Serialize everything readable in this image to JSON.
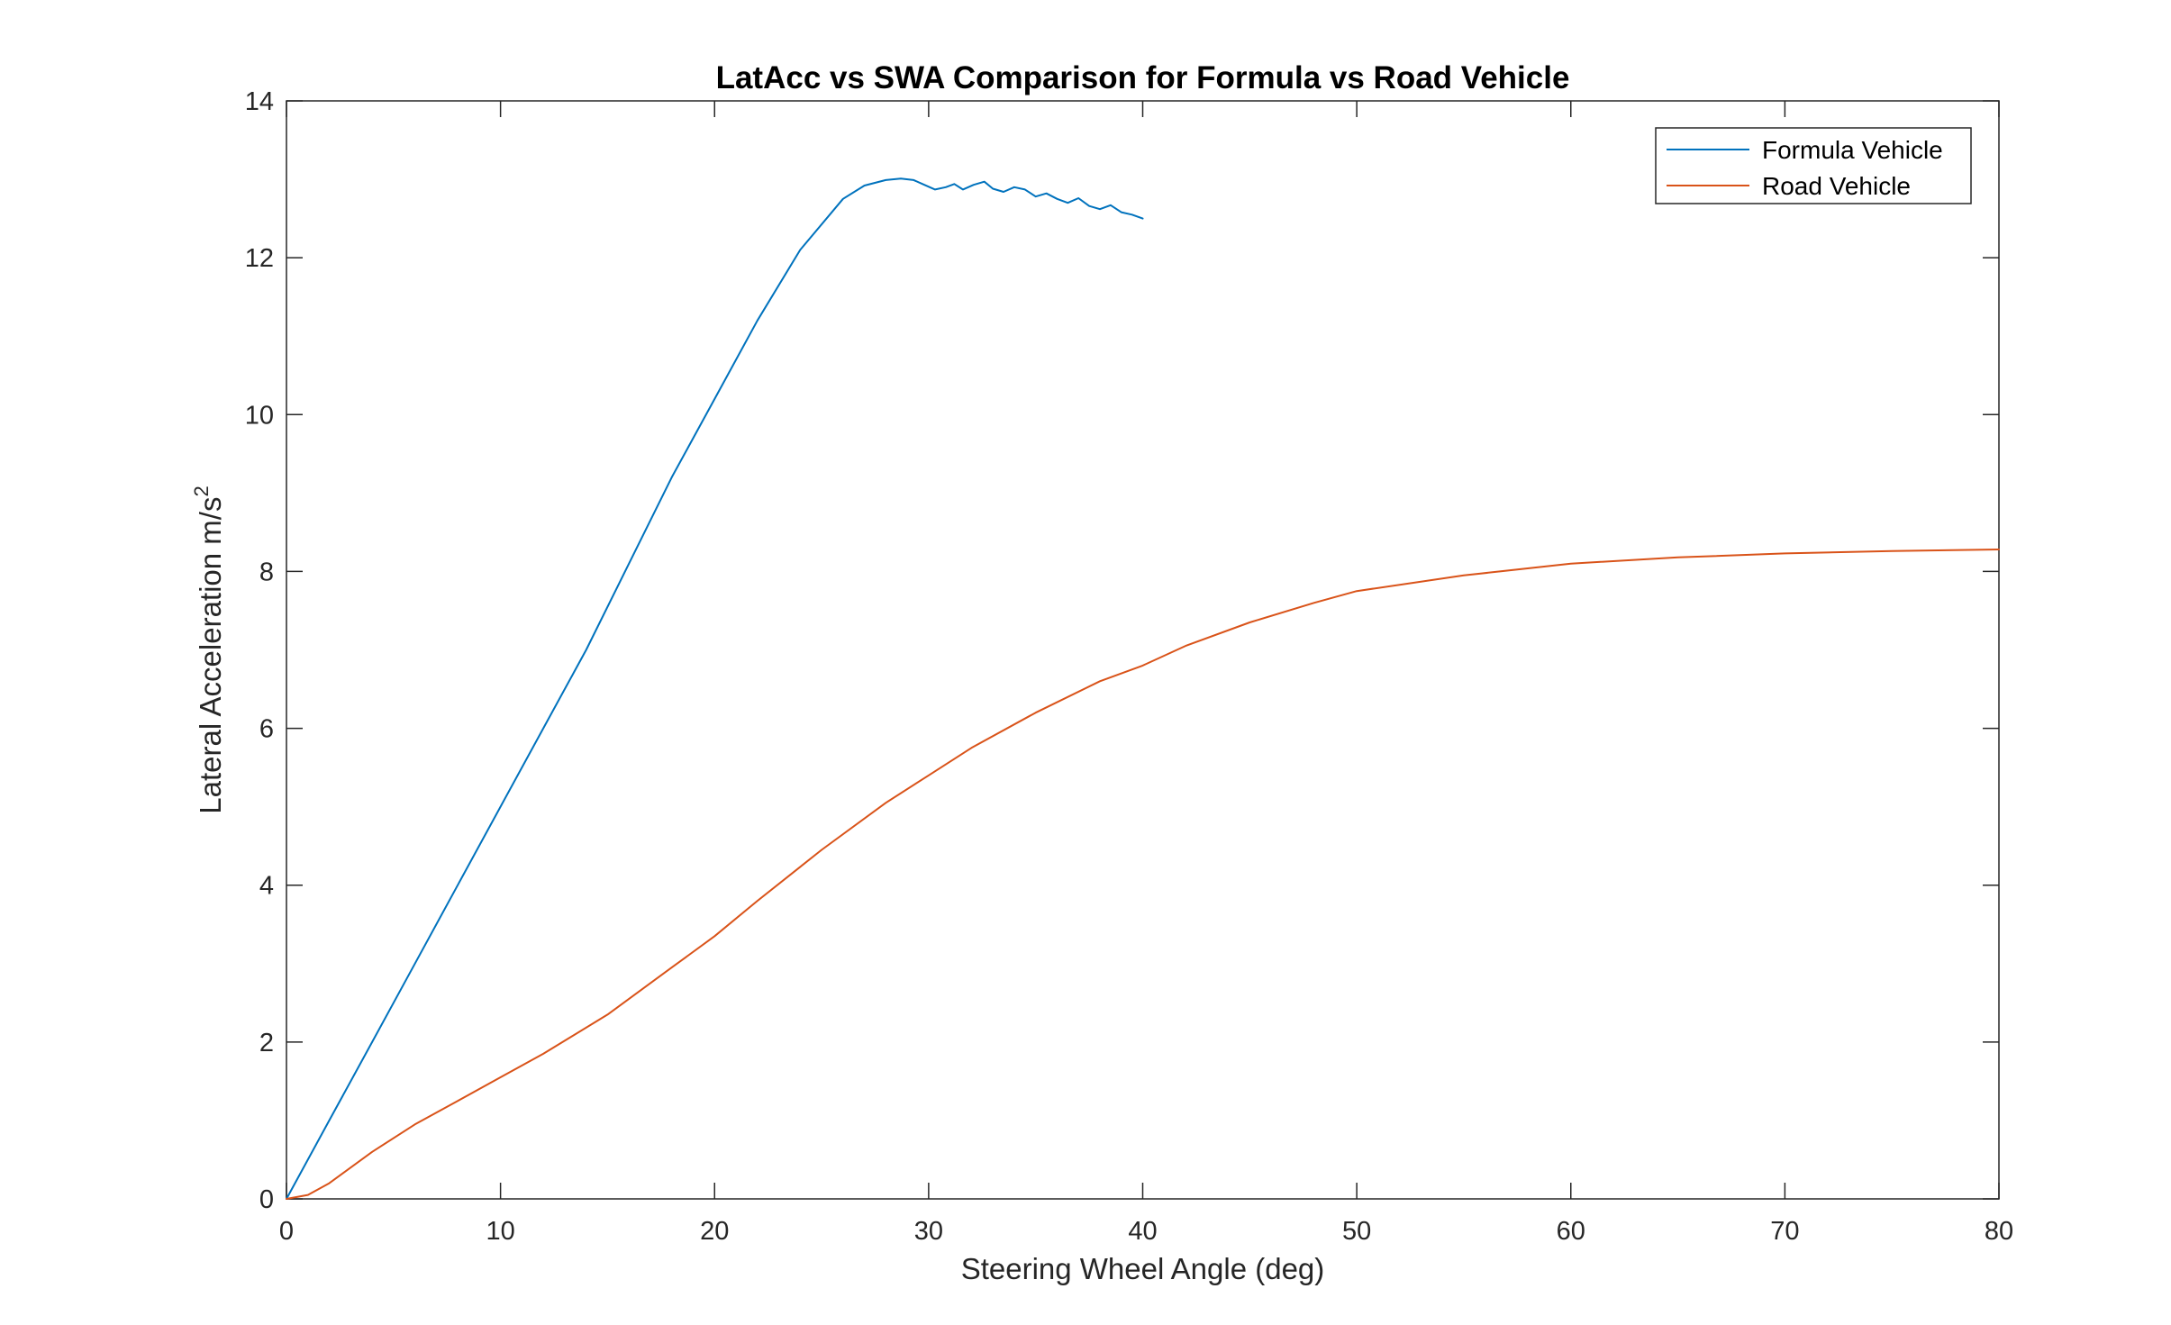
{
  "chart_data": {
    "type": "line",
    "title": "LatAcc vs SWA Comparison for Formula vs Road Vehicle",
    "xlabel": "Steering Wheel Angle (deg)",
    "ylabel": "Lateral Acceleration m/s",
    "ylabel_superscript": "2",
    "xlim": [
      0,
      80
    ],
    "ylim": [
      0,
      14
    ],
    "xticks": [
      0,
      10,
      20,
      30,
      40,
      50,
      60,
      70,
      80
    ],
    "yticks": [
      0,
      2,
      4,
      6,
      8,
      10,
      12,
      14
    ],
    "grid": false,
    "legend_position": "top-right",
    "colors": {
      "axis": "#262626",
      "formula": "#0072BD",
      "road": "#D95319"
    },
    "series": [
      {
        "name": "Formula Vehicle",
        "color": "#0072BD",
        "x": [
          0,
          2,
          4,
          6,
          8,
          10,
          12,
          14,
          16,
          18,
          20,
          22,
          24,
          26,
          27,
          28,
          28.7,
          29.3,
          29.8,
          30.3,
          30.8,
          31.2,
          31.6,
          32.1,
          32.6,
          33.0,
          33.5,
          34.0,
          34.5,
          35.0,
          35.5,
          36.0,
          36.5,
          37.0,
          37.5,
          38.0,
          38.5,
          39.0,
          39.5,
          40.0
        ],
        "y": [
          0,
          1.0,
          2.0,
          3.0,
          4.0,
          5.0,
          6.0,
          7.0,
          8.1,
          9.2,
          10.2,
          11.2,
          12.1,
          12.75,
          12.92,
          12.99,
          13.01,
          12.99,
          12.93,
          12.87,
          12.9,
          12.94,
          12.87,
          12.93,
          12.97,
          12.88,
          12.84,
          12.9,
          12.87,
          12.78,
          12.82,
          12.75,
          12.7,
          12.76,
          12.66,
          12.62,
          12.67,
          12.58,
          12.55,
          12.5
        ]
      },
      {
        "name": "Road Vehicle",
        "color": "#D95319",
        "x": [
          0,
          1,
          2,
          3,
          4,
          6,
          8,
          10,
          12,
          15,
          18,
          20,
          22,
          25,
          28,
          30,
          32,
          35,
          38,
          40,
          42,
          45,
          48,
          50,
          55,
          60,
          65,
          70,
          75,
          80
        ],
        "y": [
          0,
          0.05,
          0.2,
          0.4,
          0.6,
          0.95,
          1.25,
          1.55,
          1.85,
          2.35,
          2.95,
          3.35,
          3.8,
          4.45,
          5.05,
          5.4,
          5.75,
          6.2,
          6.6,
          6.8,
          7.05,
          7.35,
          7.6,
          7.75,
          7.95,
          8.1,
          8.18,
          8.23,
          8.26,
          8.28
        ]
      }
    ]
  }
}
